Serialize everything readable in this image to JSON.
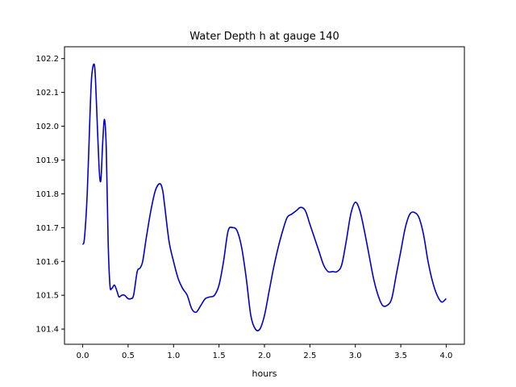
{
  "chart_data": {
    "type": "line",
    "title": "Water Depth h at gauge 140",
    "xlabel": "hours",
    "ylabel": "",
    "xlim": [
      -0.2,
      4.2
    ],
    "ylim": [
      101.355,
      102.235
    ],
    "grid": false,
    "x_ticks": [
      0.0,
      0.5,
      1.0,
      1.5,
      2.0,
      2.5,
      3.0,
      3.5,
      4.0
    ],
    "x_tick_labels": [
      "0.0",
      "0.5",
      "1.0",
      "1.5",
      "2.0",
      "2.5",
      "3.0",
      "3.5",
      "4.0"
    ],
    "y_ticks": [
      101.4,
      101.5,
      101.6,
      101.7,
      101.8,
      101.9,
      102.0,
      102.1,
      102.2
    ],
    "y_tick_labels": [
      "101.4",
      "101.5",
      "101.6",
      "101.7",
      "101.8",
      "101.9",
      "102.0",
      "102.1",
      "102.2"
    ],
    "line_color": "#0000cc",
    "series": [
      {
        "x": [
          0.0,
          0.02,
          0.05,
          0.08,
          0.1,
          0.13,
          0.15,
          0.18,
          0.2,
          0.22,
          0.24,
          0.26,
          0.28,
          0.3,
          0.32,
          0.35,
          0.38,
          0.4,
          0.43,
          0.46,
          0.5,
          0.53,
          0.56,
          0.6,
          0.63,
          0.66,
          0.7,
          0.75,
          0.8,
          0.85,
          0.88,
          0.9,
          0.95,
          1.0,
          1.05,
          1.1,
          1.15,
          1.2,
          1.25,
          1.3,
          1.35,
          1.4,
          1.45,
          1.5,
          1.55,
          1.6,
          1.65,
          1.7,
          1.75,
          1.8,
          1.85,
          1.9,
          1.95,
          2.0,
          2.05,
          2.1,
          2.15,
          2.2,
          2.25,
          2.3,
          2.35,
          2.4,
          2.45,
          2.5,
          2.55,
          2.6,
          2.65,
          2.7,
          2.75,
          2.8,
          2.85,
          2.9,
          2.95,
          3.0,
          3.05,
          3.1,
          3.15,
          3.2,
          3.25,
          3.3,
          3.35,
          3.4,
          3.45,
          3.5,
          3.55,
          3.6,
          3.65,
          3.7,
          3.75,
          3.8,
          3.85,
          3.9,
          3.95,
          4.0
        ],
        "y": [
          101.65,
          101.67,
          101.8,
          102.03,
          102.15,
          102.18,
          102.08,
          101.88,
          101.84,
          101.95,
          102.02,
          101.93,
          101.66,
          101.53,
          101.52,
          101.53,
          101.51,
          101.495,
          101.5,
          101.5,
          101.49,
          101.49,
          101.5,
          101.57,
          101.58,
          101.6,
          101.67,
          101.75,
          101.81,
          101.83,
          101.81,
          101.77,
          101.66,
          101.6,
          101.55,
          101.52,
          101.5,
          101.46,
          101.45,
          101.47,
          101.49,
          101.495,
          101.5,
          101.53,
          101.6,
          101.69,
          101.7,
          101.69,
          101.64,
          101.55,
          101.44,
          101.4,
          101.4,
          101.44,
          101.51,
          101.58,
          101.64,
          101.69,
          101.73,
          101.74,
          101.75,
          101.76,
          101.75,
          101.71,
          101.67,
          101.63,
          101.59,
          101.57,
          101.57,
          101.57,
          101.59,
          101.66,
          101.74,
          101.775,
          101.75,
          101.69,
          101.62,
          101.55,
          101.5,
          101.47,
          101.47,
          101.49,
          101.56,
          101.63,
          101.7,
          101.74,
          101.745,
          101.73,
          101.68,
          101.6,
          101.54,
          101.5,
          101.48,
          101.49
        ]
      }
    ]
  }
}
